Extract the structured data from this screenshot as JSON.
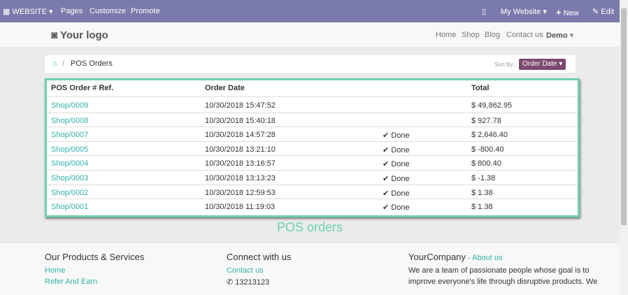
{
  "topbar": {
    "website": "WEBSITE",
    "pages": "Pages",
    "customize": "Customize",
    "promote": "Promote",
    "my_website": "My Website",
    "new": "New",
    "edit": "Edit"
  },
  "header": {
    "logo": "Your logo",
    "nav": [
      "Home",
      "Shop",
      "Blog",
      "Contact us"
    ],
    "user": "Demo"
  },
  "breadcrumb": {
    "separator": "/",
    "current": "POS Orders"
  },
  "sort": {
    "label": "Sort By:",
    "value": "Order Date"
  },
  "table": {
    "headers": [
      "POS Order # Ref.",
      "Order Date",
      "",
      "Total"
    ],
    "rows": [
      [
        "Shop/0009",
        "10/30/2018  15:47:52",
        "",
        "$ 49,862.95"
      ],
      [
        "Shop/0008",
        "10/30/2018  15:40:18",
        "",
        "$ 927.78"
      ],
      [
        "Shop/0007",
        "10/30/2018  14:57:28",
        "Done",
        "$ 2,646.40"
      ],
      [
        "Shop/0005",
        "10/30/2018  13:21:10",
        "Done",
        "$ -800.40"
      ],
      [
        "Shop/0004",
        "10/30/2018  13:16:57",
        "Done",
        "$ 800.40"
      ],
      [
        "Shop/0003",
        "10/30/2018  13:13:23",
        "Done",
        "$ -1.38"
      ],
      [
        "Shop/0002",
        "10/30/2018  12:59:53",
        "Done",
        "$ 1.38"
      ],
      [
        "Shop/0001",
        "10/30/2018  11:19:03",
        "Done",
        "$ 1.38"
      ]
    ]
  },
  "caption": "POS orders",
  "footer": {
    "col1_title": "Our Products & Services",
    "col1_links": [
      "Home",
      "Refer And Earn"
    ],
    "col2_title": "Connect with us",
    "col2_link": "Contact us",
    "phone": "13213123",
    "col3_title": "YourCompany",
    "col3_sep": " - ",
    "col3_link": "About us",
    "about_lines": [
      "We are a team of passionate people whose goal is to",
      "improve everyone's life through disruptive products. We"
    ]
  },
  "colors": {
    "topbar": "#7a7aab",
    "accent": "#30b0a8",
    "highlight": "#6cd2a8",
    "sort_button": "#7c4a6e"
  }
}
